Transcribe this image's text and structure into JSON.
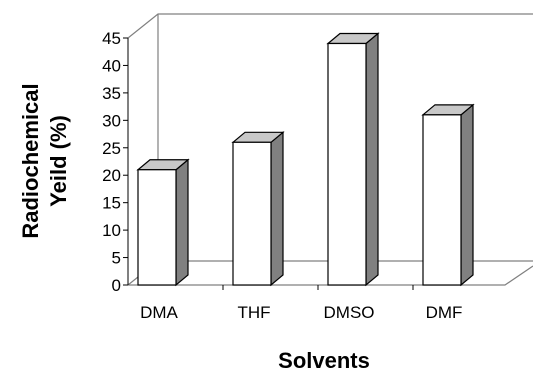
{
  "chart_data": {
    "type": "bar",
    "categories": [
      "DMA",
      "THF",
      "DMSO",
      "DMF"
    ],
    "values": [
      21,
      26,
      44,
      31
    ],
    "title": "",
    "xlabel": "Solvents",
    "ylabel_lines": [
      "Radiochemical",
      "Yeild (%)"
    ],
    "ylim": [
      0,
      45
    ],
    "yticks": [
      "0",
      "5",
      "10",
      "15",
      "20",
      "25",
      "30",
      "35",
      "40",
      "45"
    ],
    "grid": false,
    "legend": "none",
    "bar_front_color": "#ffffff",
    "bar_top_color": "#c8c8c8",
    "bar_side_color": "#808080"
  }
}
